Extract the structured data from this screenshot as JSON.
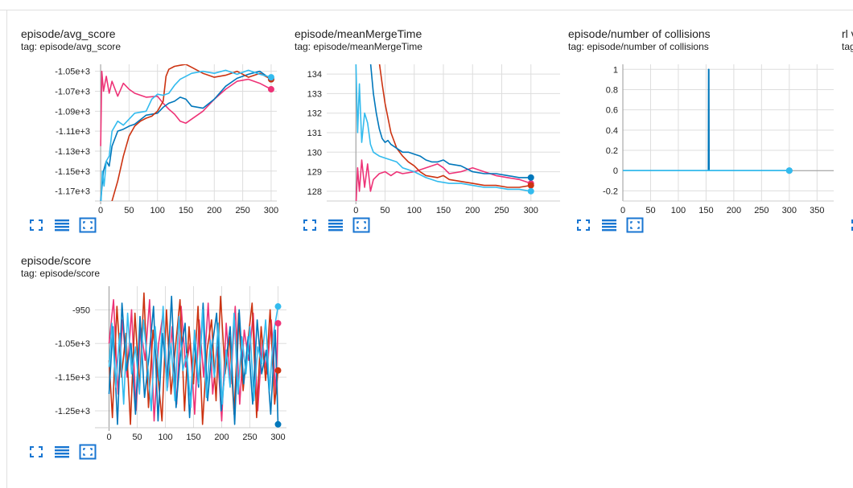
{
  "colors": {
    "run1": "#0077bb",
    "run2": "#cc3311",
    "run3": "#ee3377",
    "run4": "#33bbee",
    "grid": "#dddddd",
    "toolbar_icon": "#1976d2"
  },
  "cards": [
    {
      "title": "episode/avg_score",
      "tag": "tag: episode/avg_score"
    },
    {
      "title": "episode/meanMergeTime",
      "tag": "tag: episode/meanMergeTime"
    },
    {
      "title": "episode/number of collisions",
      "tag": "tag: episode/number of collisions"
    },
    {
      "title": "rl v",
      "tag": "tag"
    },
    {
      "title": "episode/score",
      "tag": "tag: episode/score"
    }
  ],
  "toolbar_icons": [
    "fullscreen-icon",
    "data-table-icon",
    "fit-domain-icon"
  ],
  "chart_data": [
    {
      "type": "line",
      "xlim": [
        -10,
        310
      ],
      "ylim": [
        -1180,
        -1043
      ],
      "xticks": [
        0,
        50,
        100,
        150,
        200,
        250,
        300
      ],
      "xtick_labels": [
        "0",
        "50",
        "100",
        "150",
        "200",
        "250",
        "300"
      ],
      "yticks": [
        -1050,
        -1070,
        -1090,
        -1110,
        -1130,
        -1150,
        -1170
      ],
      "ytick_labels": [
        "-1.05e+3",
        "-1.07e+3",
        "-1.09e+3",
        "-1.11e+3",
        "-1.13e+3",
        "-1.15e+3",
        "-1.17e+3"
      ],
      "series": [
        {
          "color": "#ee3377",
          "x": [
            0,
            2,
            5,
            10,
            15,
            20,
            30,
            40,
            50,
            60,
            80,
            100,
            110,
            120,
            130,
            140,
            150,
            160,
            170,
            180,
            200,
            220,
            240,
            260,
            280,
            300
          ],
          "y": [
            -1125,
            -1050,
            -1070,
            -1055,
            -1072,
            -1060,
            -1075,
            -1062,
            -1068,
            -1072,
            -1076,
            -1075,
            -1082,
            -1088,
            -1093,
            -1100,
            -1102,
            -1098,
            -1094,
            -1090,
            -1078,
            -1068,
            -1060,
            -1058,
            -1062,
            -1068
          ]
        },
        {
          "color": "#0077bb",
          "x": [
            0,
            5,
            10,
            15,
            20,
            30,
            40,
            50,
            60,
            80,
            100,
            110,
            120,
            130,
            140,
            150,
            160,
            180,
            200,
            220,
            240,
            260,
            280,
            300
          ],
          "y": [
            -1180,
            -1150,
            -1140,
            -1145,
            -1125,
            -1110,
            -1108,
            -1105,
            -1103,
            -1094,
            -1092,
            -1086,
            -1082,
            -1080,
            -1076,
            -1078,
            -1085,
            -1087,
            -1078,
            -1065,
            -1057,
            -1053,
            -1050,
            -1058
          ]
        },
        {
          "color": "#cc3311",
          "x": [
            0,
            15,
            20,
            30,
            40,
            50,
            60,
            70,
            80,
            90,
            100,
            110,
            115,
            120,
            130,
            140,
            150,
            160,
            180,
            200,
            220,
            240,
            260,
            280,
            300
          ],
          "y": [
            -1190,
            -1190,
            -1180,
            -1160,
            -1135,
            -1115,
            -1105,
            -1100,
            -1097,
            -1095,
            -1090,
            -1080,
            -1055,
            -1048,
            -1045,
            -1044,
            -1043,
            -1046,
            -1052,
            -1056,
            -1054,
            -1050,
            -1056,
            -1052,
            -1058
          ]
        },
        {
          "color": "#33bbee",
          "x": [
            0,
            3,
            6,
            10,
            15,
            20,
            30,
            40,
            50,
            60,
            80,
            90,
            100,
            110,
            120,
            130,
            140,
            150,
            160,
            180,
            200,
            220,
            240,
            260,
            280,
            300
          ],
          "y": [
            -1190,
            -1150,
            -1165,
            -1140,
            -1135,
            -1110,
            -1100,
            -1104,
            -1098,
            -1092,
            -1090,
            -1078,
            -1073,
            -1074,
            -1072,
            -1064,
            -1058,
            -1055,
            -1052,
            -1050,
            -1052,
            -1049,
            -1053,
            -1049,
            -1053,
            -1056
          ]
        }
      ]
    },
    {
      "type": "line",
      "xlim": [
        -50,
        350
      ],
      "ylim": [
        127.5,
        134.5
      ],
      "xticks": [
        0,
        50,
        100,
        150,
        200,
        250,
        300
      ],
      "xtick_labels": [
        "0",
        "50",
        "100",
        "150",
        "200",
        "250",
        "300"
      ],
      "yticks": [
        128,
        129,
        130,
        131,
        132,
        133,
        134
      ],
      "ytick_labels": [
        "128",
        "129",
        "130",
        "131",
        "132",
        "133",
        "134"
      ],
      "series": [
        {
          "color": "#ee3377",
          "x": [
            0,
            3,
            6,
            10,
            15,
            20,
            25,
            30,
            40,
            50,
            60,
            70,
            80,
            100,
            120,
            140,
            150,
            160,
            180,
            200,
            220,
            240,
            260,
            280,
            300
          ],
          "y": [
            127.2,
            129.2,
            128.0,
            129.6,
            128.2,
            129.4,
            128.0,
            128.6,
            128.9,
            129.0,
            128.8,
            129.0,
            128.9,
            129.0,
            129.2,
            129.4,
            129.2,
            128.9,
            129.0,
            129.2,
            129.0,
            128.8,
            128.7,
            128.6,
            128.4
          ]
        },
        {
          "color": "#cc3311",
          "x": [
            40,
            45,
            50,
            60,
            70,
            80,
            90,
            100,
            110,
            120,
            140,
            150,
            160,
            180,
            200,
            220,
            240,
            260,
            280,
            300
          ],
          "y": [
            134.6,
            133.5,
            132.5,
            131.0,
            130.2,
            129.8,
            129.5,
            129.3,
            129.0,
            128.8,
            128.7,
            128.8,
            128.6,
            128.5,
            128.4,
            128.3,
            128.3,
            128.2,
            128.2,
            128.3
          ]
        },
        {
          "color": "#0077bb",
          "x": [
            25,
            30,
            35,
            40,
            45,
            50,
            55,
            60,
            70,
            80,
            90,
            100,
            110,
            120,
            130,
            140,
            150,
            160,
            180,
            200,
            220,
            240,
            260,
            280,
            300
          ],
          "y": [
            134.6,
            133.0,
            132.0,
            131.2,
            130.7,
            130.5,
            130.6,
            130.4,
            130.2,
            130.0,
            130.0,
            129.9,
            129.8,
            129.6,
            129.5,
            129.5,
            129.6,
            129.4,
            129.3,
            129.0,
            128.9,
            128.9,
            128.8,
            128.7,
            128.7
          ]
        },
        {
          "color": "#33bbee",
          "x": [
            0,
            3,
            6,
            10,
            15,
            20,
            25,
            30,
            40,
            50,
            60,
            70,
            80,
            100,
            120,
            140,
            160,
            180,
            200,
            220,
            240,
            260,
            280,
            300
          ],
          "y": [
            134.6,
            131.0,
            133.5,
            130.5,
            132.0,
            131.5,
            130.4,
            130.0,
            129.8,
            129.7,
            129.6,
            129.5,
            129.2,
            129.0,
            128.7,
            128.5,
            128.4,
            128.4,
            128.3,
            128.2,
            128.2,
            128.1,
            128.1,
            128.0
          ]
        }
      ]
    },
    {
      "type": "line",
      "xlim": [
        0,
        380
      ],
      "ylim": [
        -0.3,
        1.05
      ],
      "xticks": [
        0,
        50,
        100,
        150,
        200,
        250,
        300,
        350
      ],
      "xtick_labels": [
        "0",
        "50",
        "100",
        "150",
        "200",
        "250",
        "300",
        "350"
      ],
      "yticks": [
        1,
        0.8,
        0.6,
        0.4,
        0.2,
        0,
        -0.2
      ],
      "ytick_labels": [
        "1",
        "0.8",
        "0.6",
        "0.4",
        "0.2",
        "0",
        "-0.2"
      ],
      "series": [
        {
          "color": "#0077bb",
          "x": [
            0,
            154,
            154.5,
            155,
            155.5,
            156,
            300
          ],
          "y": [
            0,
            0,
            1,
            1,
            0,
            0,
            0
          ]
        },
        {
          "color": "#33bbee",
          "x": [
            0,
            300
          ],
          "y": [
            0,
            0
          ]
        }
      ]
    },
    {
      "type": "line",
      "xlim": [
        -25,
        315
      ],
      "ylim": [
        -1300,
        -880
      ],
      "xticks": [
        0,
        50,
        100,
        150,
        200,
        250,
        300
      ],
      "xtick_labels": [
        "0",
        "50",
        "100",
        "150",
        "200",
        "250",
        "300"
      ],
      "yticks": [
        -950,
        -1050,
        -1150,
        -1250
      ],
      "ytick_labels": [
        "-950",
        "-1.05e+3",
        "-1.15e+3",
        "-1.25e+3"
      ],
      "series": [
        {
          "color": "#ee3377",
          "x": [
            0,
            8,
            16,
            24,
            32,
            40,
            48,
            56,
            64,
            72,
            80,
            88,
            96,
            104,
            112,
            120,
            128,
            136,
            144,
            152,
            160,
            168,
            176,
            184,
            192,
            200,
            208,
            216,
            224,
            232,
            240,
            248,
            256,
            264,
            272,
            280,
            288,
            296,
            300
          ],
          "y": [
            -1050,
            -920,
            -1200,
            -980,
            -1150,
            -950,
            -1250,
            -1000,
            -1100,
            -920,
            -1280,
            -1050,
            -960,
            -1180,
            -1000,
            -1230,
            -940,
            -1120,
            -1050,
            -1260,
            -980,
            -1150,
            -930,
            -1200,
            -1060,
            -1280,
            -990,
            -1170,
            -940,
            -1230,
            -1010,
            -1100,
            -960,
            -1250,
            -1040,
            -1140,
            -980,
            -1200,
            -990
          ]
        },
        {
          "color": "#cc3311",
          "x": [
            0,
            6,
            14,
            22,
            30,
            38,
            46,
            54,
            62,
            70,
            78,
            86,
            94,
            102,
            110,
            118,
            126,
            134,
            142,
            150,
            158,
            166,
            174,
            182,
            190,
            198,
            206,
            214,
            222,
            230,
            238,
            246,
            254,
            262,
            270,
            278,
            286,
            294,
            300
          ],
          "y": [
            -1100,
            -1270,
            -940,
            -1150,
            -1020,
            -1290,
            -960,
            -1180,
            -900,
            -1240,
            -1010,
            -1130,
            -1280,
            -950,
            -1200,
            -1060,
            -920,
            -1250,
            -1000,
            -1170,
            -940,
            -1290,
            -1070,
            -980,
            -1220,
            -910,
            -1140,
            -1030,
            -1260,
            -960,
            -1190,
            -1050,
            -930,
            -1270,
            -1000,
            -1160,
            -950,
            -1230,
            -1130
          ]
        },
        {
          "color": "#0077bb",
          "x": [
            0,
            7,
            15,
            23,
            31,
            39,
            47,
            55,
            63,
            71,
            79,
            87,
            95,
            103,
            111,
            119,
            127,
            135,
            143,
            151,
            159,
            167,
            175,
            183,
            191,
            199,
            207,
            215,
            223,
            231,
            239,
            247,
            255,
            263,
            271,
            279,
            287,
            295,
            300
          ],
          "y": [
            -1200,
            -1000,
            -1290,
            -930,
            -1130,
            -1050,
            -1260,
            -970,
            -1210,
            -1090,
            -940,
            -1280,
            -1020,
            -1160,
            -910,
            -1240,
            -1080,
            -990,
            -1270,
            -1040,
            -1180,
            -930,
            -1220,
            -1060,
            -960,
            -1250,
            -1110,
            -1000,
            -1290,
            -950,
            -1170,
            -1030,
            -1230,
            -980,
            -1140,
            -1070,
            -1260,
            -1010,
            -1290
          ]
        },
        {
          "color": "#33bbee",
          "x": [
            0,
            5,
            12,
            19,
            26,
            33,
            40,
            47,
            54,
            61,
            68,
            75,
            82,
            89,
            96,
            103,
            110,
            117,
            124,
            131,
            138,
            145,
            152,
            159,
            166,
            173,
            180,
            187,
            194,
            201,
            208,
            215,
            222,
            229,
            236,
            243,
            250,
            257,
            264,
            271,
            278,
            285,
            292,
            300
          ],
          "y": [
            -1120,
            -990,
            -1180,
            -1020,
            -1230,
            -960,
            -1140,
            -1060,
            -1200,
            -980,
            -1100,
            -1250,
            -1000,
            -1160,
            -940,
            -1190,
            -1050,
            -1220,
            -970,
            -1130,
            -1080,
            -1240,
            -1010,
            -1170,
            -950,
            -1210,
            -1040,
            -1150,
            -990,
            -1230,
            -1070,
            -1180,
            -960,
            -1200,
            -1030,
            -1140,
            -1000,
            -1220,
            -1060,
            -1110,
            -980,
            -1190,
            -1020,
            -940
          ]
        }
      ]
    }
  ]
}
